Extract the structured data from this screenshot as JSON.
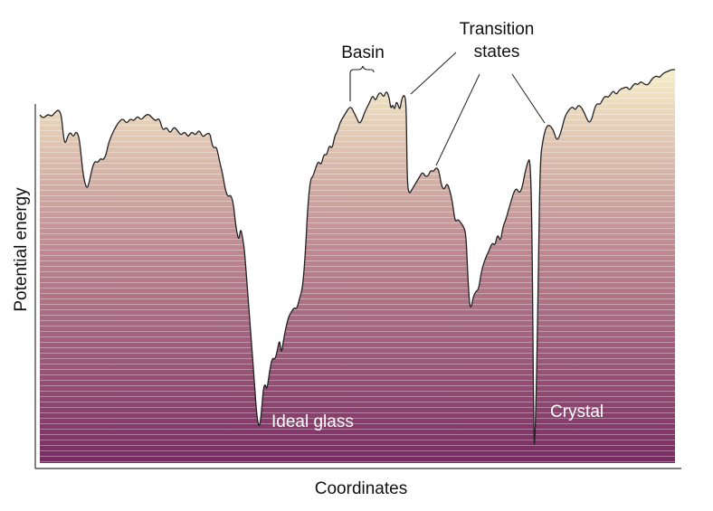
{
  "axes": {
    "xlabel": "Coordinates",
    "ylabel": "Potential energy"
  },
  "annotations": {
    "basin": "Basin",
    "transition_line1": "Transition",
    "transition_line2": "states",
    "ideal_glass": "Ideal glass",
    "crystal": "Crystal"
  },
  "colors": {
    "fill_top": "#f7eec7",
    "fill_mid": "#c08a92",
    "fill_bottom": "#7a2a63",
    "curve": "#222222",
    "axis": "#333333",
    "stripe": "#ffffff"
  }
}
